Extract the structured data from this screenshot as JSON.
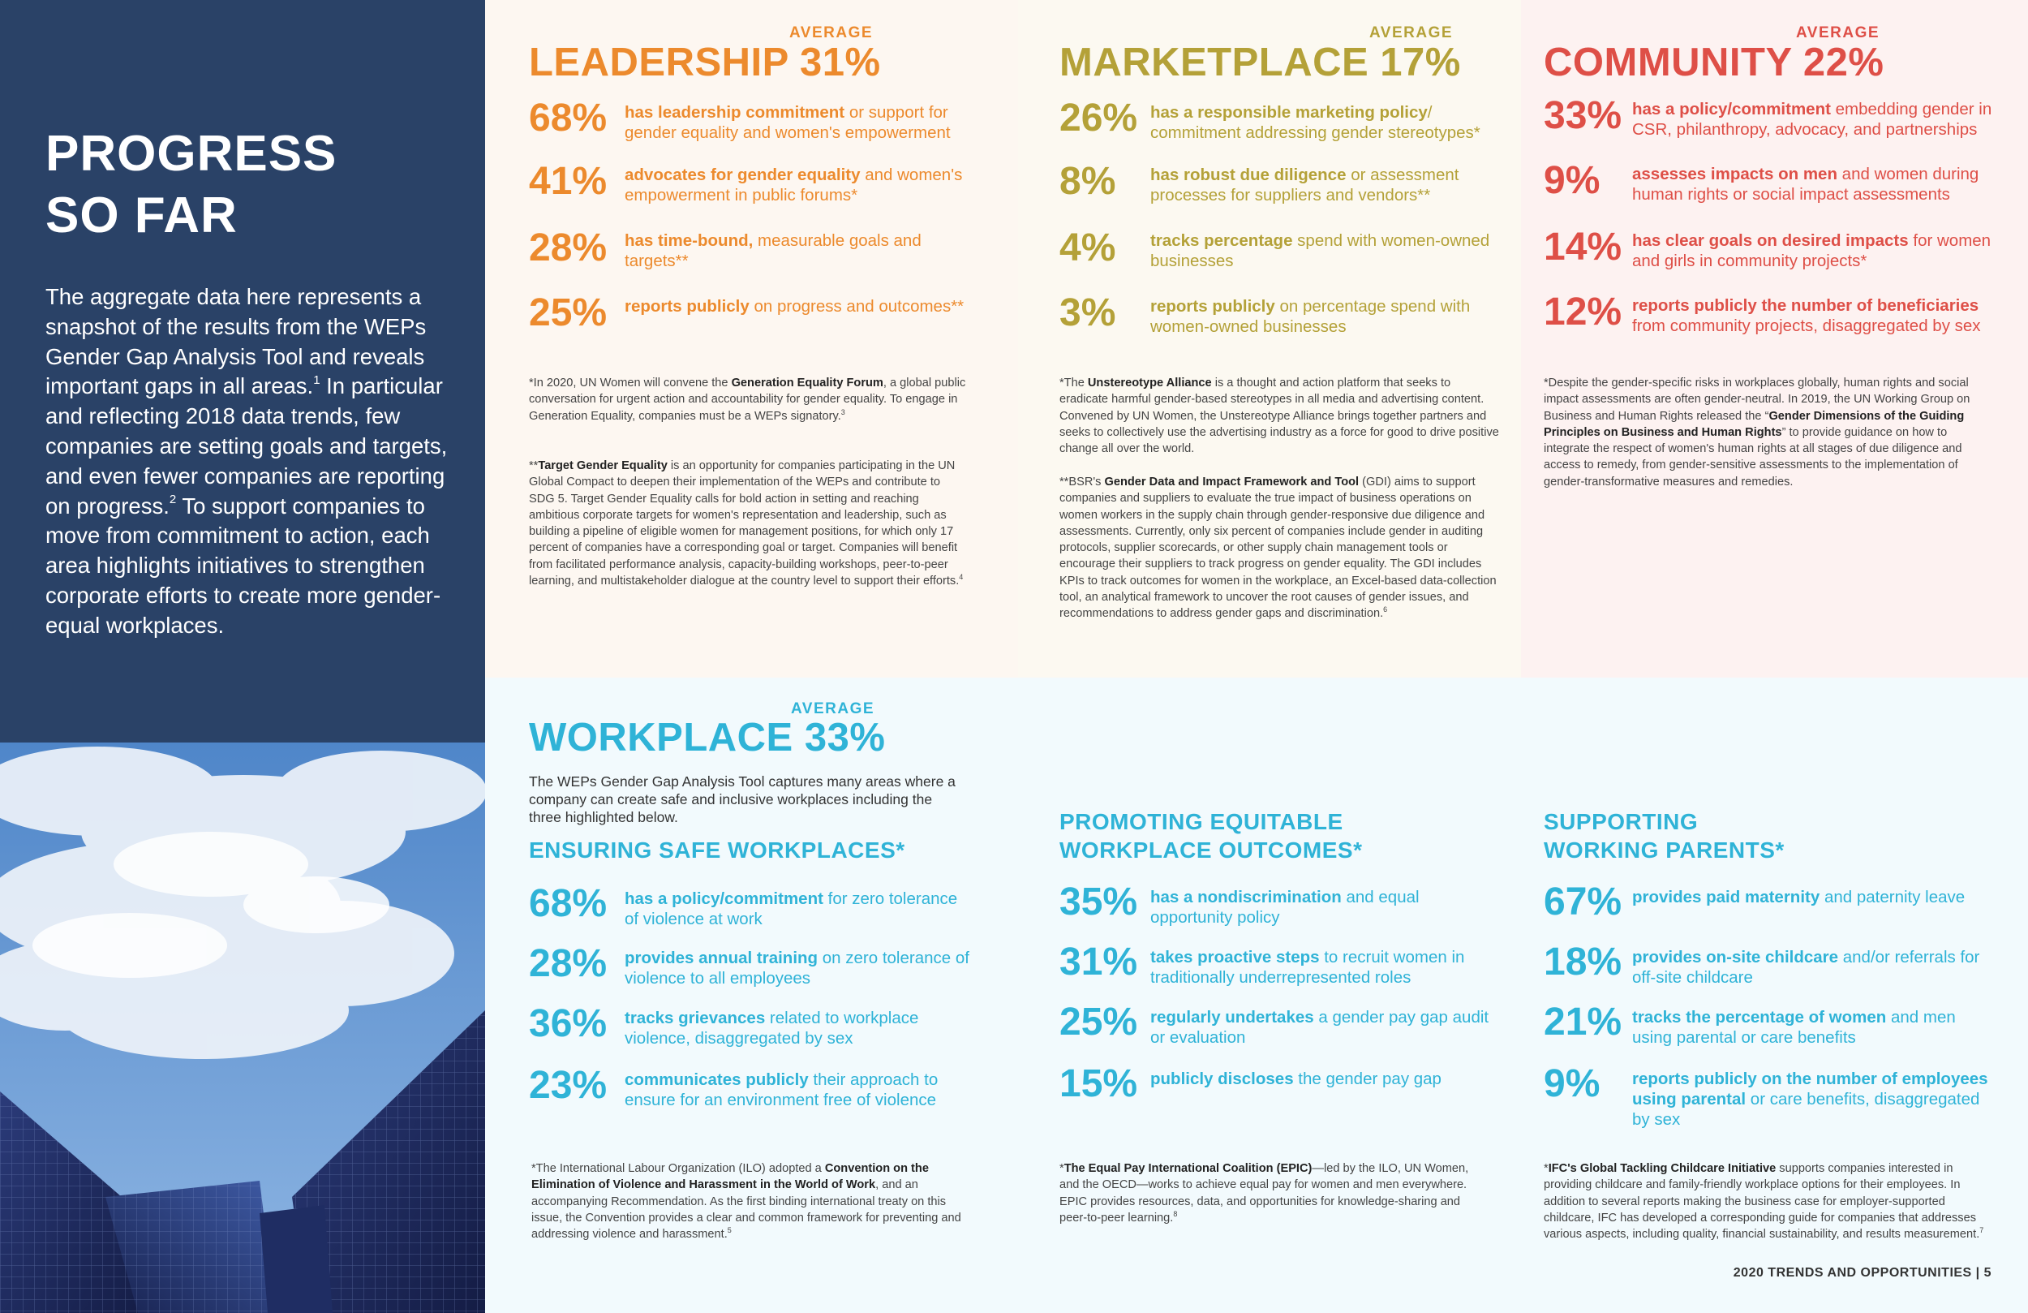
{
  "left": {
    "title_line1": "PROGRESS",
    "title_line2": "SO FAR",
    "body_part1": "The aggregate data here represents a snapshot of the results from the WEPs Gender Gap Analysis Tool and reveals important gaps in all areas.",
    "sup1": "1",
    "body_part2": " In particular and reflecting 2018 data trends, few companies are setting goals and targets, and even fewer companies are reporting on progress.",
    "sup2": "2",
    "body_part3": " To support companies to move from commitment to action, each area highlights initiatives to strengthen corporate efforts to create more gender-equal workplaces."
  },
  "colors": {
    "navy": "#2a4267",
    "leadership": "#ec8a2d",
    "marketplace": "#b4a138",
    "community": "#de4f47",
    "workplace": "#2fb3d7"
  },
  "leadership": {
    "avg_label": "AVERAGE",
    "title": "LEADERSHIP 31%",
    "stats": [
      {
        "pct": "68%",
        "bold": "has leadership commitment",
        "rest": " or support for gender equality and women's empowerment"
      },
      {
        "pct": "41%",
        "bold": "advocates for gender equality",
        "rest": " and women's empowerment in public forums*"
      },
      {
        "pct": "28%",
        "bold": "has time-bound,",
        "rest": " measurable goals and targets**"
      },
      {
        "pct": "25%",
        "bold": "reports publicly",
        "rest": " on progress and outcomes**"
      }
    ],
    "note1": {
      "pre": "*In 2020, UN Women will convene the ",
      "bold": "Generation Equality Forum",
      "post": ", a global public conversation for urgent action and accountability for gender equality. To engage in Generation Equality, companies must be a WEPs signatory.",
      "sup": "3"
    },
    "note2": {
      "pre": "**",
      "bold": "Target Gender Equality",
      "post": " is an opportunity for companies participating in the UN Global Compact to deepen their implementation of the WEPs and contribute to SDG 5. Target Gender Equality calls for bold action in setting and reaching ambitious corporate targets for women's representation and leadership, such as building a pipeline of eligible women for management positions, for which only 17 percent of companies have a corresponding goal or target. Companies will benefit from facilitated performance analysis, capacity-building workshops, peer-to-peer learning, and multistakeholder dialogue at the country level to support their efforts.",
      "sup": "4"
    }
  },
  "marketplace": {
    "avg_label": "AVERAGE",
    "title": "MARKETPLACE 17%",
    "stats": [
      {
        "pct": "26%",
        "bold": "has a responsible marketing policy",
        "rest": "/ commitment addressing gender stereotypes*"
      },
      {
        "pct": "8%",
        "bold": "has robust due diligence",
        "rest": " or assessment processes for suppliers and vendors**"
      },
      {
        "pct": "4%",
        "bold": "tracks percentage",
        "rest": " spend with women-owned businesses"
      },
      {
        "pct": "3%",
        "bold": "reports publicly",
        "rest": " on percentage spend with women-owned businesses"
      }
    ],
    "note1": {
      "pre": "*The ",
      "bold": "Unstereotype Alliance",
      "post": " is a thought and action platform that seeks to eradicate harmful gender-based stereotypes in all media and advertising content. Convened by UN Women, the Unstereotype Alliance brings together partners and seeks to collectively use the advertising industry as a force for good to drive positive change all over the world.",
      "sup": ""
    },
    "note2": {
      "pre": "**BSR's ",
      "bold": "Gender Data and Impact Framework and Tool",
      "post": " (GDI) aims to support companies and suppliers to evaluate the true impact of business operations on women workers in the supply chain through gender-responsive due diligence and assessments. Currently, only six percent of companies include gender in auditing protocols, supplier scorecards, or other supply chain management tools or encourage their suppliers to track progress on gender equality. The GDI includes KPIs to track outcomes for women in the workplace, an Excel-based data-collection tool, an analytical framework to uncover the root causes of gender issues, and recommendations to address gender gaps and discrimination.",
      "sup": "6"
    }
  },
  "community": {
    "avg_label": "AVERAGE",
    "title": "COMMUNITY 22%",
    "stats": [
      {
        "pct": "33%",
        "bold": "has a policy/commitment",
        "rest": " embedding gender in CSR, philanthropy, advocacy, and partnerships"
      },
      {
        "pct": "9%",
        "bold": "assesses impacts on men",
        "rest": " and women during human rights or social impact assessments"
      },
      {
        "pct": "14%",
        "bold": "has clear goals on desired impacts",
        "rest": " for women and girls in community projects*"
      },
      {
        "pct": "12%",
        "bold": "reports publicly the number of beneficiaries",
        "rest": " from community projects, disaggregated by sex"
      }
    ],
    "note1": {
      "pre": "*Despite the gender-specific risks in workplaces globally, human rights and social impact assessments are often gender-neutral. In 2019, the UN Working Group on Business and Human Rights released the “",
      "bold": "Gender Dimensions of the Guiding Principles on Business and Human Rights",
      "post": "” to provide guidance on how to integrate the respect of women's human rights at all stages of due diligence and access to remedy, from gender-sensitive assessments to the implementation of gender-transformative measures and remedies.",
      "sup": ""
    }
  },
  "workplace": {
    "avg_label": "AVERAGE",
    "title": "WORKPLACE 33%",
    "intro": "The WEPs Gender Gap Analysis Tool captures many areas where a company can create safe and inclusive workplaces including the three highlighted below.",
    "safe": {
      "heading": "ENSURING SAFE WORKPLACES*",
      "stats": [
        {
          "pct": "68%",
          "bold": "has a policy/commitment",
          "rest": " for zero tolerance of violence at work"
        },
        {
          "pct": "28%",
          "bold": "provides annual training",
          "rest": " on zero tolerance of violence to all employees"
        },
        {
          "pct": "36%",
          "bold": "tracks grievances",
          "rest": " related to workplace violence, disaggregated by sex"
        },
        {
          "pct": "23%",
          "bold": "communicates publicly",
          "rest": " their approach to ensure for an environment free of violence"
        }
      ],
      "note": {
        "pre": "*The International Labour Organization (ILO) adopted a ",
        "bold": "Convention on the Elimination of Violence and Harassment in the World of Work",
        "post": ", and an accompanying Recommendation. As the first binding international treaty on this issue, the Convention provides a clear and common framework for preventing and addressing violence and harassment.",
        "sup": "5"
      }
    },
    "equitable": {
      "heading_line1": "PROMOTING EQUITABLE",
      "heading_line2": "WORKPLACE OUTCOMES*",
      "stats": [
        {
          "pct": "35%",
          "bold": "has a nondiscrimination",
          "rest": " and equal opportunity policy"
        },
        {
          "pct": "31%",
          "bold": "takes proactive steps",
          "rest": " to recruit women in traditionally underrepresented roles"
        },
        {
          "pct": "25%",
          "bold": "regularly undertakes",
          "rest": " a gender pay gap audit or evaluation"
        },
        {
          "pct": "15%",
          "bold": "publicly discloses",
          "rest": " the gender pay gap"
        }
      ],
      "note": {
        "pre": "*",
        "bold": "The Equal Pay International Coalition (EPIC)",
        "post": "—led by the ILO, UN Women, and the OECD—works to achieve equal pay for women and men everywhere. EPIC provides resources, data, and opportunities for knowledge-sharing and peer-to-peer learning.",
        "sup": "8"
      }
    },
    "parents": {
      "heading_line1": "SUPPORTING",
      "heading_line2": "WORKING PARENTS*",
      "stats": [
        {
          "pct": "67%",
          "bold": "provides paid maternity",
          "rest": " and paternity leave"
        },
        {
          "pct": "18%",
          "bold": "provides on-site childcare",
          "rest": " and/or referrals for off-site childcare"
        },
        {
          "pct": "21%",
          "bold": "tracks the percentage of women",
          "rest": " and men using parental or care benefits"
        },
        {
          "pct": "9%",
          "bold": "reports publicly on the number of employees using parental",
          "rest": " or care benefits, disaggregated by sex"
        }
      ],
      "note": {
        "pre": "*",
        "bold": "IFC's Global Tackling Childcare Initiative",
        "post": " supports companies interested in providing childcare and family-friendly workplace options for their employees. In addition to several reports making the business case for employer-supported childcare, IFC has developed a corresponding guide for companies that addresses various aspects, including quality, financial sustainability, and results measurement.",
        "sup": "7"
      }
    }
  },
  "footer": "2020 TRENDS AND OPPORTUNITIES | 5"
}
